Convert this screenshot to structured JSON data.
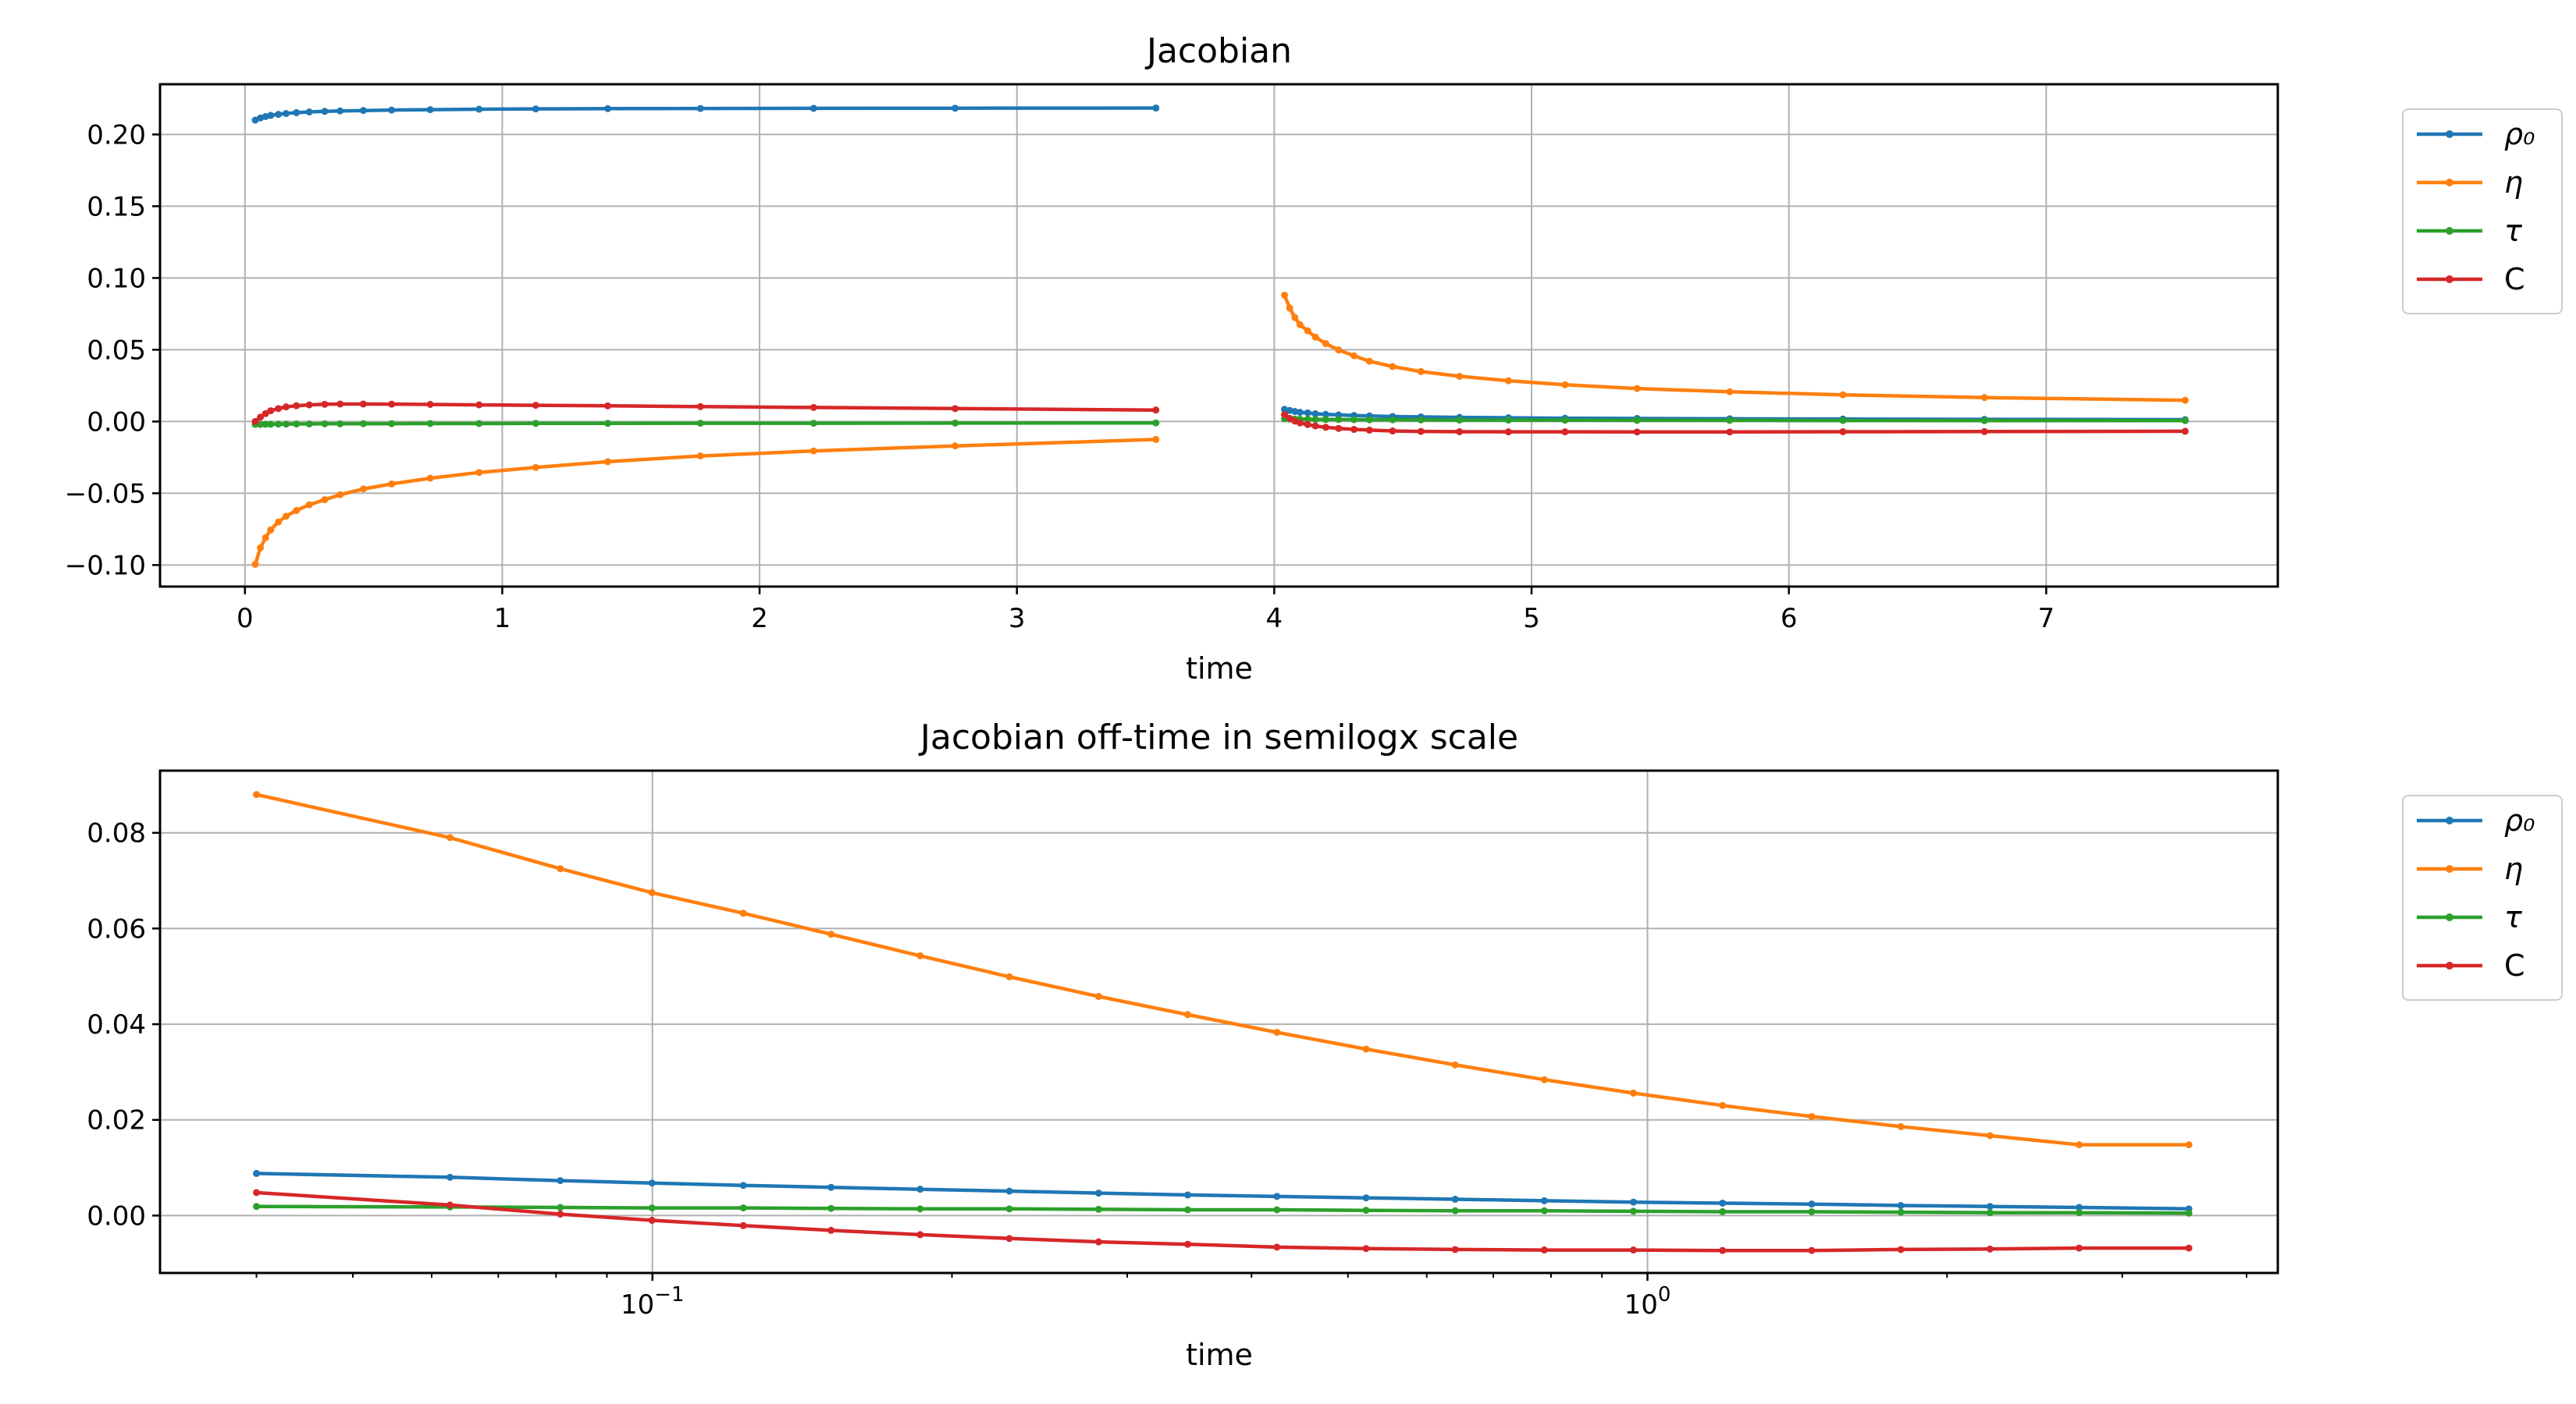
{
  "chart_data": [
    {
      "type": "line",
      "title": "Jacobian",
      "xlabel": "time",
      "ylabel": "",
      "xlim": [
        -0.33,
        7.9
      ],
      "ylim": [
        -0.115,
        0.235
      ],
      "xscale": "linear",
      "grid": true,
      "legend_position": "outside right, top",
      "xticks": [
        0,
        1,
        2,
        3,
        4,
        5,
        6,
        7
      ],
      "xtick_labels": [
        "0",
        "1",
        "2",
        "3",
        "4",
        "5",
        "6",
        "7"
      ],
      "yticks": [
        -0.1,
        -0.05,
        0.0,
        0.05,
        0.1,
        0.15,
        0.2
      ],
      "ytick_labels": [
        "−0.10",
        "−0.05",
        "0.00",
        "0.05",
        "0.10",
        "0.15",
        "0.20"
      ],
      "series": [
        {
          "name": "ρ₀",
          "color": "#1f77b4",
          "segments": [
            {
              "x": [
                0.04,
                0.06,
                0.08,
                0.1,
                0.13,
                0.16,
                0.2,
                0.25,
                0.31,
                0.37,
                0.46,
                0.57,
                0.72,
                0.91,
                1.13,
                1.41,
                1.77,
                2.21,
                2.76,
                3.54
              ],
              "y": [
                0.21,
                0.2115,
                0.2125,
                0.2133,
                0.214,
                0.2146,
                0.2152,
                0.2157,
                0.2161,
                0.2164,
                0.2167,
                0.217,
                0.2173,
                0.2176,
                0.2178,
                0.218,
                0.2181,
                0.2182,
                0.2183,
                0.2184
              ]
            },
            {
              "x": [
                4.04,
                4.06,
                4.08,
                4.1,
                4.13,
                4.16,
                4.2,
                4.25,
                4.31,
                4.37,
                4.46,
                4.57,
                4.72,
                4.91,
                5.13,
                5.41,
                5.77,
                6.21,
                6.76,
                7.54
              ],
              "y": [
                0.0085,
                0.0077,
                0.007,
                0.0064,
                0.006,
                0.0054,
                0.005,
                0.0046,
                0.0042,
                0.0039,
                0.0035,
                0.0032,
                0.0029,
                0.0026,
                0.0023,
                0.0021,
                0.0019,
                0.0017,
                0.0015,
                0.0013
              ]
            }
          ]
        },
        {
          "name": "η",
          "color": "#ff7f0e",
          "segments": [
            {
              "x": [
                0.04,
                0.06,
                0.08,
                0.1,
                0.13,
                0.16,
                0.2,
                0.25,
                0.31,
                0.37,
                0.46,
                0.57,
                0.72,
                0.91,
                1.13,
                1.41,
                1.77,
                2.21,
                2.76,
                3.54
              ],
              "y": [
                -0.0995,
                -0.088,
                -0.081,
                -0.0755,
                -0.07,
                -0.066,
                -0.062,
                -0.058,
                -0.0545,
                -0.051,
                -0.047,
                -0.0435,
                -0.0395,
                -0.0355,
                -0.032,
                -0.028,
                -0.024,
                -0.0205,
                -0.017,
                -0.0125
              ]
            },
            {
              "x": [
                4.04,
                4.06,
                4.08,
                4.1,
                4.13,
                4.16,
                4.2,
                4.25,
                4.31,
                4.37,
                4.46,
                4.57,
                4.72,
                4.91,
                5.13,
                5.41,
                5.77,
                6.21,
                6.76,
                7.54
              ],
              "y": [
                0.088,
                0.079,
                0.0725,
                0.0675,
                0.0632,
                0.0588,
                0.0543,
                0.0499,
                0.0458,
                0.042,
                0.0383,
                0.0348,
                0.0315,
                0.0284,
                0.0256,
                0.023,
                0.0207,
                0.0186,
                0.0167,
                0.0148
              ]
            }
          ]
        },
        {
          "name": "τ",
          "color": "#2ca02c",
          "segments": [
            {
              "x": [
                0.04,
                0.06,
                0.08,
                0.1,
                0.13,
                0.16,
                0.2,
                0.25,
                0.31,
                0.37,
                0.46,
                0.57,
                0.72,
                0.91,
                1.13,
                1.41,
                1.77,
                2.21,
                2.76,
                3.54
              ],
              "y": [
                -0.002,
                -0.002,
                -0.0019,
                -0.0019,
                -0.0018,
                -0.0018,
                -0.0017,
                -0.0017,
                -0.0016,
                -0.0016,
                -0.0015,
                -0.0015,
                -0.0014,
                -0.0014,
                -0.0013,
                -0.0013,
                -0.0012,
                -0.0012,
                -0.0011,
                -0.001
              ]
            },
            {
              "x": [
                4.04,
                4.06,
                4.08,
                4.1,
                4.13,
                4.16,
                4.2,
                4.25,
                4.31,
                4.37,
                4.46,
                4.57,
                4.72,
                4.91,
                5.13,
                5.41,
                5.77,
                6.21,
                6.76,
                7.54
              ],
              "y": [
                0.0019,
                0.0018,
                0.0017,
                0.0016,
                0.0016,
                0.0015,
                0.0014,
                0.0014,
                0.0013,
                0.0012,
                0.0012,
                0.0011,
                0.001,
                0.001,
                0.0009,
                0.0008,
                0.0008,
                0.0007,
                0.0006,
                0.0006
              ]
            }
          ]
        },
        {
          "name": "C",
          "color": "#d62728",
          "segments": [
            {
              "x": [
                0.04,
                0.06,
                0.08,
                0.1,
                0.13,
                0.16,
                0.2,
                0.25,
                0.31,
                0.37,
                0.46,
                0.57,
                0.72,
                0.91,
                1.13,
                1.41,
                1.77,
                2.21,
                2.76,
                3.54
              ],
              "y": [
                0.0,
                0.003,
                0.0055,
                0.0075,
                0.009,
                0.0102,
                0.011,
                0.0116,
                0.012,
                0.0122,
                0.0122,
                0.0121,
                0.0119,
                0.0116,
                0.0113,
                0.0109,
                0.0104,
                0.0098,
                0.009,
                0.008
              ]
            },
            {
              "x": [
                4.04,
                4.06,
                4.08,
                4.1,
                4.13,
                4.16,
                4.2,
                4.25,
                4.31,
                4.37,
                4.46,
                4.57,
                4.72,
                4.91,
                5.13,
                5.41,
                5.77,
                6.21,
                6.76,
                7.54
              ],
              "y": [
                0.0048,
                0.0022,
                0.0003,
                -0.001,
                -0.0021,
                -0.0031,
                -0.004,
                -0.0048,
                -0.0055,
                -0.006,
                -0.0066,
                -0.0069,
                -0.0071,
                -0.0072,
                -0.0072,
                -0.0073,
                -0.0073,
                -0.0071,
                -0.007,
                -0.0068
              ]
            }
          ]
        }
      ]
    },
    {
      "type": "line",
      "title": "Jacobian off-time in semilogx scale",
      "xlabel": "time",
      "ylabel": "",
      "xlim": [
        0.032,
        4.3
      ],
      "ylim": [
        -0.012,
        0.093
      ],
      "xscale": "log",
      "grid": true,
      "legend_position": "outside right, top",
      "xticks": [
        0.1,
        1
      ],
      "xtick_labels": [
        {
          "base": "10",
          "exp": "−1"
        },
        {
          "base": "10",
          "exp": "0"
        }
      ],
      "minor_xticks": [
        0.04,
        0.05,
        0.06,
        0.07,
        0.08,
        0.09,
        0.2,
        0.3,
        0.4,
        0.5,
        0.6,
        0.7,
        0.8,
        0.9,
        2,
        3,
        4
      ],
      "yticks": [
        0.0,
        0.02,
        0.04,
        0.06,
        0.08
      ],
      "ytick_labels": [
        "0.00",
        "0.02",
        "0.04",
        "0.06",
        "0.08"
      ],
      "series": [
        {
          "name": "ρ₀",
          "color": "#1f77b4",
          "x": [
            0.04,
            0.0626,
            0.0808,
            0.0999,
            0.1234,
            0.1512,
            0.1858,
            0.2284,
            0.2808,
            0.3451,
            0.4242,
            0.5214,
            0.6408,
            0.7876,
            0.968,
            1.1897,
            1.4623,
            1.7974,
            2.2091,
            2.7152,
            3.5
          ],
          "y": [
            0.0088,
            0.008,
            0.0073,
            0.0068,
            0.0063,
            0.0059,
            0.0055,
            0.0051,
            0.0047,
            0.0043,
            0.004,
            0.0037,
            0.0034,
            0.0031,
            0.0028,
            0.0026,
            0.0024,
            0.0021,
            0.0019,
            0.0017,
            0.0014
          ]
        },
        {
          "name": "η",
          "color": "#ff7f0e",
          "x": [
            0.04,
            0.0626,
            0.0808,
            0.0999,
            0.1234,
            0.1512,
            0.1858,
            0.2284,
            0.2808,
            0.3451,
            0.4242,
            0.5214,
            0.6408,
            0.7876,
            0.968,
            1.1897,
            1.4623,
            1.7974,
            2.2091,
            2.7152,
            3.5
          ],
          "y": [
            0.088,
            0.079,
            0.0725,
            0.0675,
            0.0632,
            0.0588,
            0.0543,
            0.0499,
            0.0458,
            0.042,
            0.0383,
            0.0348,
            0.0315,
            0.0284,
            0.0256,
            0.023,
            0.0207,
            0.0186,
            0.0167,
            0.0148,
            0.0148
          ]
        },
        {
          "name": "τ",
          "color": "#2ca02c",
          "x": [
            0.04,
            0.0626,
            0.0808,
            0.0999,
            0.1234,
            0.1512,
            0.1858,
            0.2284,
            0.2808,
            0.3451,
            0.4242,
            0.5214,
            0.6408,
            0.7876,
            0.968,
            1.1897,
            1.4623,
            1.7974,
            2.2091,
            2.7152,
            3.5
          ],
          "y": [
            0.0019,
            0.0018,
            0.0017,
            0.0016,
            0.0016,
            0.0015,
            0.0014,
            0.0014,
            0.0013,
            0.0012,
            0.0012,
            0.0011,
            0.001,
            0.001,
            0.0009,
            0.0008,
            0.0008,
            0.0007,
            0.0006,
            0.0006,
            0.0005
          ]
        },
        {
          "name": "C",
          "color": "#d62728",
          "x": [
            0.04,
            0.0626,
            0.0808,
            0.0999,
            0.1234,
            0.1512,
            0.1858,
            0.2284,
            0.2808,
            0.3451,
            0.4242,
            0.5214,
            0.6408,
            0.7876,
            0.968,
            1.1897,
            1.4623,
            1.7974,
            2.2091,
            2.7152,
            3.5
          ],
          "y": [
            0.0048,
            0.0022,
            0.0003,
            -0.001,
            -0.0021,
            -0.0031,
            -0.004,
            -0.0048,
            -0.0055,
            -0.006,
            -0.0066,
            -0.0069,
            -0.0071,
            -0.0072,
            -0.0072,
            -0.0073,
            -0.0073,
            -0.0071,
            -0.007,
            -0.0068,
            -0.0068
          ]
        }
      ]
    }
  ]
}
